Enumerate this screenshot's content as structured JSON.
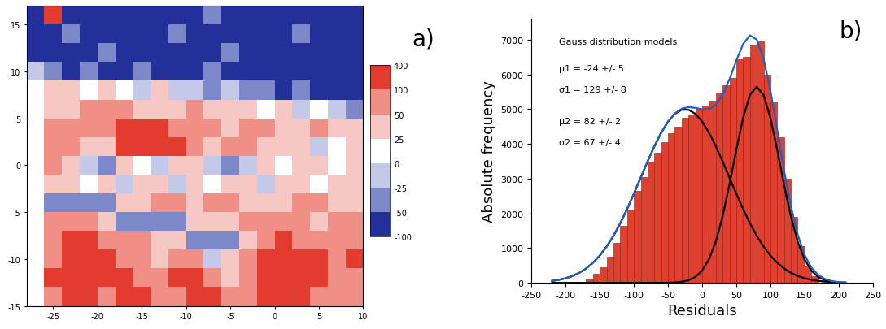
{
  "chart_data": [
    {
      "type": "heatmap",
      "label": "a)",
      "xlim": [
        -28,
        10
      ],
      "ylim": [
        -15,
        17
      ],
      "xticks": [
        -25,
        -20,
        -15,
        -10,
        -5,
        0,
        5,
        10
      ],
      "yticks": [
        -15,
        -10,
        -5,
        0,
        5,
        10,
        15
      ],
      "x_edges": [
        -28,
        -26,
        -24,
        -22,
        -20,
        -18,
        -16,
        -14,
        -12,
        -10,
        -8,
        -6,
        -4,
        -2,
        0,
        2,
        4,
        6,
        8,
        10
      ],
      "y_edges": [
        -15,
        -13,
        -11,
        -9,
        -7,
        -5,
        -3,
        -1,
        1,
        3,
        5,
        7,
        9,
        11,
        13,
        15,
        17
      ],
      "cells": [
        [
          10,
          75,
          150,
          150,
          75,
          150,
          150,
          75,
          75,
          150,
          150,
          75,
          75,
          150,
          150,
          150,
          75,
          75,
          75
        ],
        [
          10,
          150,
          150,
          150,
          150,
          150,
          75,
          75,
          150,
          150,
          75,
          35,
          75,
          150,
          150,
          150,
          150,
          75,
          75
        ],
        [
          10,
          75,
          150,
          150,
          150,
          75,
          75,
          35,
          75,
          75,
          -10,
          35,
          75,
          150,
          150,
          150,
          150,
          75,
          150
        ],
        [
          10,
          75,
          150,
          150,
          75,
          75,
          75,
          35,
          35,
          -40,
          -40,
          -40,
          35,
          75,
          150,
          75,
          75,
          75,
          75
        ],
        [
          10,
          75,
          75,
          75,
          35,
          -40,
          -40,
          -40,
          -40,
          35,
          35,
          35,
          75,
          75,
          75,
          75,
          35,
          75,
          75
        ],
        [
          10,
          -40,
          -40,
          -40,
          -40,
          35,
          35,
          75,
          75,
          35,
          75,
          75,
          35,
          35,
          35,
          75,
          75,
          35,
          35
        ],
        [
          10,
          35,
          35,
          10,
          35,
          -10,
          35,
          35,
          -10,
          35,
          10,
          35,
          35,
          -10,
          35,
          35,
          10,
          35,
          35
        ],
        [
          10,
          75,
          35,
          -10,
          -40,
          35,
          10,
          -10,
          35,
          35,
          -10,
          -40,
          -10,
          35,
          10,
          35,
          35,
          10,
          35
        ],
        [
          10,
          75,
          75,
          35,
          35,
          150,
          150,
          150,
          150,
          75,
          35,
          75,
          75,
          35,
          35,
          35,
          -10,
          10,
          35
        ],
        [
          10,
          75,
          75,
          75,
          75,
          150,
          150,
          150,
          75,
          75,
          75,
          35,
          75,
          75,
          35,
          35,
          75,
          35,
          35
        ],
        [
          10,
          35,
          35,
          75,
          75,
          75,
          35,
          35,
          35,
          75,
          35,
          35,
          35,
          10,
          35,
          -10,
          10,
          -10,
          -40
        ],
        [
          10,
          35,
          35,
          10,
          35,
          10,
          -10,
          35,
          -10,
          -10,
          -40,
          -10,
          -40,
          -40,
          -75,
          -40,
          -75,
          -75,
          -75
        ],
        [
          -10,
          -40,
          -75,
          -40,
          -75,
          -75,
          -40,
          -75,
          -75,
          -75,
          -40,
          -75,
          -75,
          -75,
          -75,
          -75,
          -75,
          -75,
          -75
        ],
        [
          -75,
          -75,
          -75,
          -75,
          -40,
          -75,
          -75,
          -75,
          -75,
          -75,
          -75,
          -40,
          -75,
          -75,
          -75,
          -75,
          -75,
          -75,
          -75
        ],
        [
          -75,
          -75,
          -40,
          -75,
          -75,
          -75,
          -75,
          -75,
          -40,
          -75,
          -75,
          -75,
          -75,
          -75,
          -75,
          -40,
          -75,
          -75,
          -75
        ],
        [
          -75,
          150,
          -75,
          -75,
          -75,
          -75,
          -75,
          -75,
          -75,
          -75,
          -40,
          -75,
          -75,
          -75,
          -75,
          -75,
          -75,
          -75,
          -75
        ]
      ],
      "colorbar": {
        "boundaries": [
          -100,
          -50,
          -25,
          0,
          25,
          50,
          100,
          400
        ],
        "colors": [
          "#23309a",
          "#7d88c8",
          "#c4c9e8",
          "#ffffff",
          "#f7c8c3",
          "#ef8f86",
          "#e33b2e"
        ],
        "ticks": [
          -100,
          -50,
          -25,
          0,
          25,
          50,
          100,
          400
        ],
        "range": [
          -100,
          400
        ]
      }
    },
    {
      "type": "histogram",
      "label": "b)",
      "x_label": "Residuals",
      "y_label": "Absolute frequency",
      "annotations": [
        "Gauss distribution models",
        "μ1 = -24 +/- 5",
        "σ1 = 129 +/- 8",
        "μ2 = 82 +/- 2",
        "σ2 = 67 +/- 4"
      ],
      "xlim": [
        -250,
        250
      ],
      "ylim": [
        0,
        7600
      ],
      "xticks": [
        -250,
        -200,
        -150,
        -100,
        -50,
        0,
        50,
        100,
        150,
        200,
        250
      ],
      "yticks": [
        0,
        1000,
        2000,
        3000,
        4000,
        5000,
        6000,
        7000
      ],
      "color": "#e0402f",
      "bins": [
        -170,
        -160,
        -150,
        -140,
        -130,
        -120,
        -110,
        -100,
        -90,
        -80,
        -70,
        -60,
        -50,
        -40,
        -30,
        -20,
        -10,
        0,
        10,
        20,
        30,
        40,
        50,
        60,
        70,
        80,
        90,
        100,
        110,
        120,
        130,
        140,
        150,
        160,
        170
      ],
      "counts": [
        120,
        250,
        450,
        750,
        1150,
        1650,
        2100,
        2650,
        3050,
        3500,
        3750,
        4050,
        4300,
        4500,
        4750,
        4850,
        5000,
        5100,
        5250,
        5450,
        5700,
        5900,
        6450,
        6500,
        6850,
        6950,
        6000,
        5200,
        4200,
        3000,
        1900,
        1050,
        500,
        200
      ],
      "x": [
        -220,
        -210,
        -200,
        -190,
        -180,
        -170,
        -160,
        -150,
        -140,
        -130,
        -120,
        -110,
        -100,
        -90,
        -80,
        -70,
        -60,
        -50,
        -40,
        -30,
        -20,
        -10,
        0,
        10,
        20,
        30,
        40,
        50,
        60,
        70,
        80,
        90,
        100,
        110,
        120,
        130,
        140,
        150,
        160,
        170,
        180,
        190,
        200,
        210
      ],
      "series": [
        {
          "type": "line",
          "color": "#000000",
          "values": [
            56,
            87,
            133,
            199,
            291,
            415,
            578,
            787,
            1045,
            1356,
            1718,
            2126,
            2570,
            3033,
            3495,
            3935,
            4325,
            4643,
            4868,
            4985,
            4985,
            4868,
            4643,
            4325,
            3935,
            3495,
            3033,
            2570,
            2126,
            1718,
            1356,
            1045,
            787,
            578,
            415,
            291,
            199,
            133,
            87,
            56,
            35,
            21,
            12,
            7
          ]
        },
        {
          "type": "line",
          "color": "#000000",
          "values": [
            0,
            0,
            0,
            0,
            0,
            0,
            0,
            0,
            0,
            0,
            0,
            0,
            0,
            0,
            0,
            0,
            2,
            4,
            11,
            30,
            75,
            170,
            355,
            679,
            1191,
            1916,
            2828,
            3828,
            4752,
            5411,
            5650,
            5411,
            4752,
            3828,
            2828,
            1916,
            1191,
            679,
            355,
            170,
            75,
            30,
            11,
            4
          ]
        },
        {
          "type": "line",
          "color": "#1f5fc4",
          "values": [
            56,
            87,
            133,
            199,
            291,
            415,
            578,
            787,
            1045,
            1356,
            1718,
            2126,
            2570,
            3033,
            3495,
            3935,
            4327,
            4647,
            4879,
            5015,
            5060,
            5038,
            4998,
            5004,
            5126,
            5411,
            5861,
            6398,
            6878,
            7129,
            7006,
            6456,
            5539,
            4406,
            3243,
            2207,
            1390,
            812,
            442,
            226,
            110,
            51,
            23,
            11
          ]
        }
      ]
    }
  ]
}
